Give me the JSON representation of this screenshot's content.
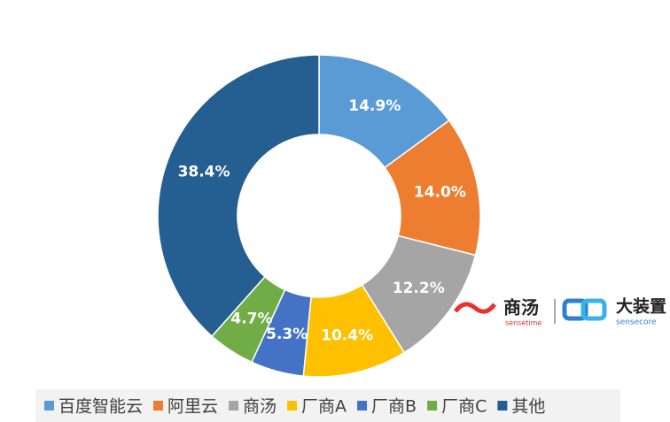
{
  "chart_data": {
    "type": "donut",
    "categories": [
      "百度智能云",
      "阿里云",
      "商汤",
      "厂商A",
      "厂商B",
      "厂商C",
      "其他"
    ],
    "values": [
      14.9,
      14.0,
      12.2,
      10.4,
      5.3,
      4.7,
      38.4
    ],
    "value_labels": [
      "14.9%",
      "14.0%",
      "12.2%",
      "10.4%",
      "5.3%",
      "4.7%",
      "38.4%"
    ],
    "colors": [
      "#5b9bd5",
      "#ed7d31",
      "#a5a5a5",
      "#ffc000",
      "#4472c4",
      "#70ad47",
      "#255e91"
    ],
    "legend": "bottom"
  },
  "logos": {
    "brand1": "商汤",
    "brand1_sub": "sensetime",
    "brand2": "大装置",
    "brand2_sub": "sensecore"
  }
}
